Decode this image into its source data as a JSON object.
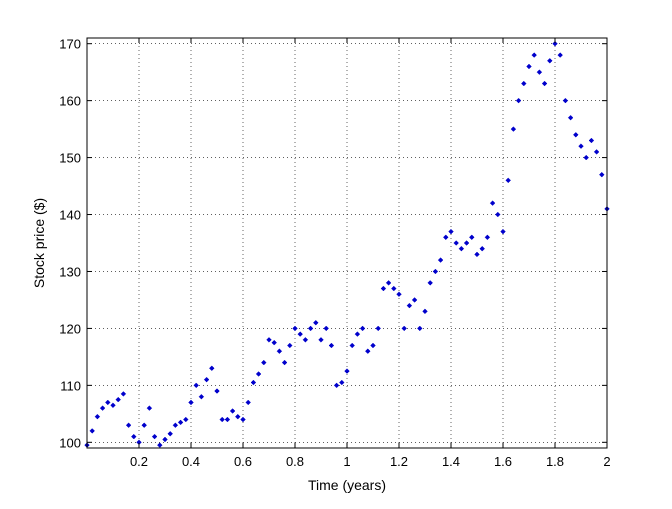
{
  "chart_data": {
    "type": "scatter",
    "title": "",
    "xlabel": "Time (years)",
    "ylabel": "Stock price ($)",
    "xlim": [
      0,
      2
    ],
    "ylim": [
      99,
      171
    ],
    "grid": true,
    "grid_style": "dotted",
    "xticks": [
      0.2,
      0.4,
      0.6,
      0.8,
      1,
      1.2,
      1.4,
      1.6,
      1.8,
      2
    ],
    "xtick_labels": [
      "0.2",
      "0.4",
      "0.6",
      "0.8",
      "1",
      "1.2",
      "1.4",
      "1.6",
      "1.8",
      "2"
    ],
    "yticks": [
      100,
      110,
      120,
      130,
      140,
      150,
      160,
      170
    ],
    "ytick_labels": [
      "100",
      "110",
      "120",
      "130",
      "140",
      "150",
      "160",
      "170"
    ],
    "marker_color": "#0000cc",
    "marker": "dot",
    "series": [
      {
        "x": [
          0.0,
          0.02,
          0.04,
          0.06,
          0.08,
          0.1,
          0.12,
          0.14,
          0.16,
          0.18,
          0.2,
          0.22,
          0.24,
          0.26,
          0.28,
          0.3,
          0.32,
          0.34,
          0.36,
          0.38,
          0.4,
          0.42,
          0.44,
          0.46,
          0.48,
          0.5,
          0.52,
          0.54,
          0.56,
          0.58,
          0.6,
          0.62,
          0.64,
          0.66,
          0.68,
          0.7,
          0.72,
          0.74,
          0.76,
          0.78,
          0.8,
          0.82,
          0.84,
          0.86,
          0.88,
          0.9,
          0.92,
          0.94,
          0.96,
          0.98,
          1.0,
          1.02,
          1.04,
          1.06,
          1.08,
          1.1,
          1.12,
          1.14,
          1.16,
          1.18,
          1.2,
          1.22,
          1.24,
          1.26,
          1.28,
          1.3,
          1.32,
          1.34,
          1.36,
          1.38,
          1.4,
          1.42,
          1.44,
          1.46,
          1.48,
          1.5,
          1.52,
          1.54,
          1.56,
          1.58,
          1.6,
          1.62,
          1.64,
          1.66,
          1.68,
          1.7,
          1.72,
          1.74,
          1.76,
          1.78,
          1.8,
          1.82,
          1.84,
          1.86,
          1.88,
          1.9,
          1.92,
          1.94,
          1.96,
          1.98,
          2.0
        ],
        "y": [
          99.5,
          102,
          104.5,
          106,
          107,
          106.5,
          107.5,
          108.5,
          103,
          101,
          100,
          103,
          106,
          101,
          99.5,
          100.5,
          101.5,
          103,
          103.5,
          104,
          107,
          110,
          108,
          111,
          113,
          109,
          104,
          104,
          105.5,
          104.5,
          104,
          107,
          110.5,
          112,
          114,
          118,
          117.5,
          116,
          114,
          117,
          120,
          119,
          118,
          120,
          121,
          118,
          120,
          117,
          110,
          110.5,
          112.5,
          117,
          119,
          120,
          116,
          117,
          120,
          127,
          128,
          127,
          126,
          120,
          124,
          125,
          120,
          123,
          128,
          130,
          132,
          136,
          137,
          135,
          134,
          135,
          136,
          133,
          134,
          136,
          142,
          140,
          137,
          146,
          155,
          160,
          163,
          166,
          168,
          165,
          163,
          167,
          170,
          168,
          160,
          157,
          154,
          152,
          150,
          153,
          151,
          147,
          141
        ]
      }
    ]
  }
}
